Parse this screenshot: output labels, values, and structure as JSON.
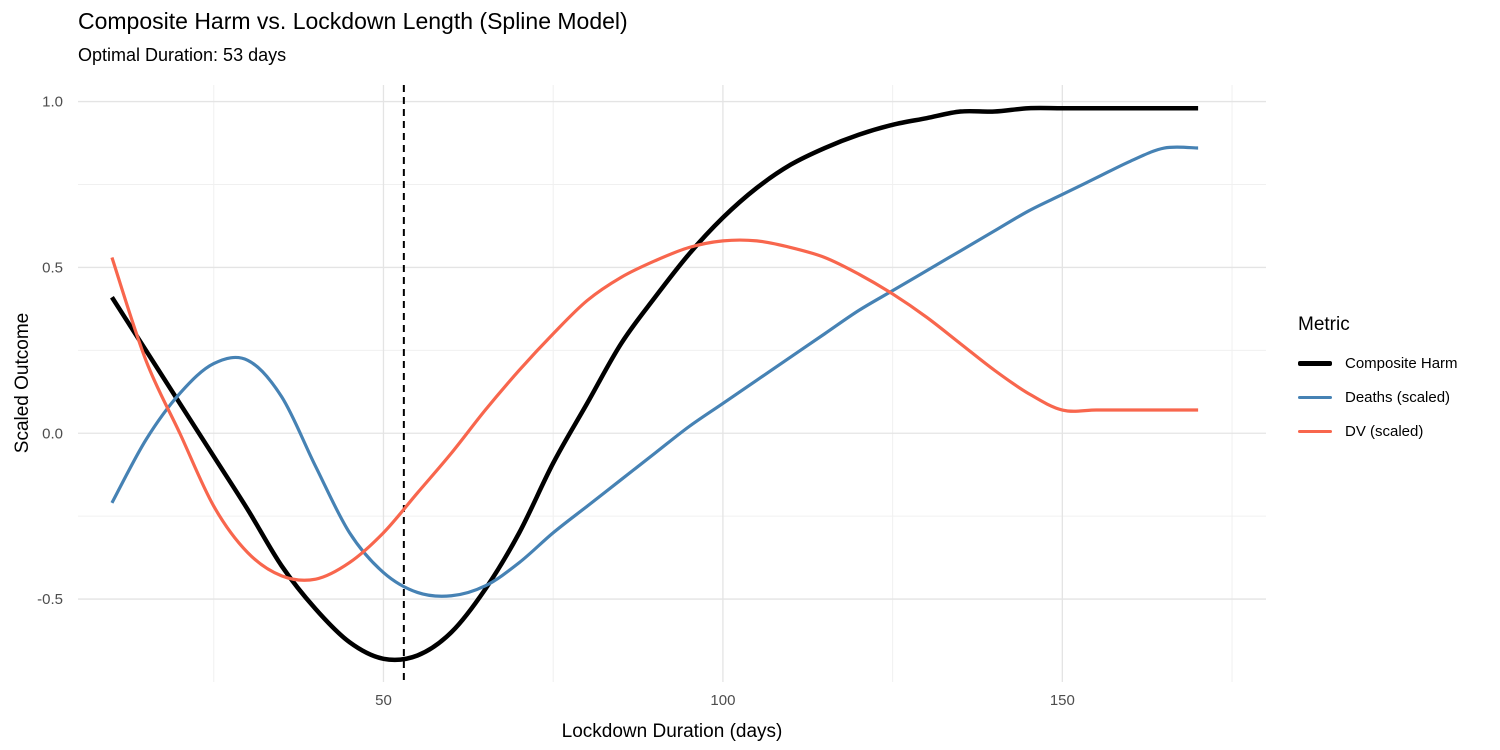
{
  "chart_data": {
    "type": "line",
    "title": "Composite Harm vs. Lockdown Length (Spline Model)",
    "subtitle": "Optimal Duration: 53 days",
    "xlabel": "Lockdown Duration (days)",
    "ylabel": "Scaled Outcome",
    "xlim": [
      5,
      180
    ],
    "ylim": [
      -0.75,
      1.05
    ],
    "x_ticks": [
      50,
      100,
      150
    ],
    "x_tick_labels": [
      "50",
      "100",
      "150"
    ],
    "y_ticks": [
      -0.5,
      0.0,
      0.5,
      1.0
    ],
    "y_tick_labels": [
      "-0.5",
      "0.0",
      "0.5",
      "1.0"
    ],
    "grid": true,
    "legend_title": "Metric",
    "legend_position": "right",
    "vline": {
      "x": 53,
      "style": "dashed"
    },
    "x": [
      10,
      15,
      20,
      25,
      30,
      35,
      40,
      45,
      50,
      55,
      60,
      65,
      70,
      75,
      80,
      85,
      90,
      95,
      100,
      105,
      110,
      115,
      120,
      125,
      130,
      135,
      140,
      145,
      150,
      155,
      160,
      165,
      170
    ],
    "series": [
      {
        "name": "Composite Harm",
        "color": "#000000",
        "values": [
          0.41,
          0.25,
          0.09,
          -0.07,
          -0.23,
          -0.4,
          -0.53,
          -0.63,
          -0.68,
          -0.67,
          -0.6,
          -0.47,
          -0.3,
          -0.09,
          0.09,
          0.27,
          0.41,
          0.54,
          0.65,
          0.74,
          0.81,
          0.86,
          0.9,
          0.93,
          0.95,
          0.97,
          0.97,
          0.98,
          0.98,
          0.98,
          0.98,
          0.98,
          0.98
        ]
      },
      {
        "name": "Deaths (scaled)",
        "color": "#4682B4",
        "values": [
          -0.21,
          -0.02,
          0.12,
          0.21,
          0.22,
          0.11,
          -0.1,
          -0.3,
          -0.42,
          -0.48,
          -0.49,
          -0.46,
          -0.39,
          -0.3,
          -0.22,
          -0.14,
          -0.06,
          0.02,
          0.09,
          0.16,
          0.23,
          0.3,
          0.37,
          0.43,
          0.49,
          0.55,
          0.61,
          0.67,
          0.72,
          0.77,
          0.82,
          0.86,
          0.86
        ]
      },
      {
        "name": "DV (scaled)",
        "color": "#F8664D",
        "values": [
          0.53,
          0.22,
          0.0,
          -0.22,
          -0.36,
          -0.43,
          -0.44,
          -0.39,
          -0.3,
          -0.18,
          -0.06,
          0.07,
          0.19,
          0.3,
          0.4,
          0.47,
          0.52,
          0.56,
          0.58,
          0.58,
          0.56,
          0.53,
          0.48,
          0.42,
          0.35,
          0.27,
          0.19,
          0.12,
          0.07,
          0.07,
          0.07,
          0.07,
          0.07
        ]
      }
    ]
  }
}
